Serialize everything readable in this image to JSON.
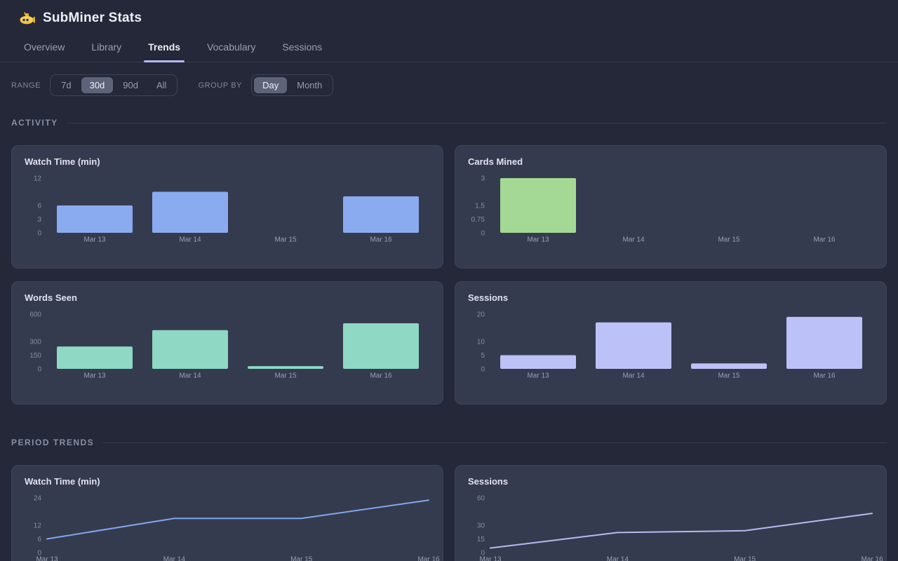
{
  "app": {
    "title": "SubMiner Stats",
    "logo_icon": "yellow-submarine-icon"
  },
  "tabs": [
    {
      "label": "Overview",
      "active": false
    },
    {
      "label": "Library",
      "active": false
    },
    {
      "label": "Trends",
      "active": true
    },
    {
      "label": "Vocabulary",
      "active": false
    },
    {
      "label": "Sessions",
      "active": false
    }
  ],
  "controls": {
    "range": {
      "label": "RANGE",
      "options": [
        {
          "label": "7d",
          "selected": false
        },
        {
          "label": "30d",
          "selected": true
        },
        {
          "label": "90d",
          "selected": false
        },
        {
          "label": "All",
          "selected": false
        }
      ]
    },
    "group_by": {
      "label": "GROUP BY",
      "options": [
        {
          "label": "Day",
          "selected": true
        },
        {
          "label": "Month",
          "selected": false
        }
      ]
    }
  },
  "sections": [
    {
      "title": "ACTIVITY"
    },
    {
      "title": "PERIOD TRENDS"
    }
  ],
  "colors": {
    "page_bg": "#242838",
    "card_bg": "#353b4e",
    "accent_underline": "#b3baf0",
    "watch_bar": "#8babf0",
    "cards_bar": "#a3d995",
    "words_bar": "#8ed8c4",
    "sessions_bar": "#bcc2f7",
    "watch_line": "#7fa6ec",
    "sessions_line": "#b5bbf2"
  },
  "chart_data": [
    {
      "id": "activity-watch-time",
      "type": "bar",
      "title": "Watch Time (min)",
      "categories": [
        "Mar 13",
        "Mar 14",
        "Mar 15",
        "Mar 16"
      ],
      "values": [
        6,
        9,
        0,
        8
      ],
      "ylim": [
        0,
        12
      ],
      "yticks": [
        0,
        3,
        6,
        12
      ],
      "grid": false,
      "legend": "none",
      "color": "#8babf0"
    },
    {
      "id": "activity-cards-mined",
      "type": "bar",
      "title": "Cards Mined",
      "categories": [
        "Mar 13",
        "Mar 14",
        "Mar 15",
        "Mar 16"
      ],
      "values": [
        3,
        0,
        0,
        0
      ],
      "ylim": [
        0,
        3
      ],
      "yticks": [
        0,
        0.75,
        1.5,
        3
      ],
      "grid": false,
      "legend": "none",
      "color": "#a3d995"
    },
    {
      "id": "activity-words-seen",
      "type": "bar",
      "title": "Words Seen",
      "categories": [
        "Mar 13",
        "Mar 14",
        "Mar 15",
        "Mar 16"
      ],
      "values": [
        245,
        425,
        30,
        500
      ],
      "ylim": [
        0,
        600
      ],
      "yticks": [
        0,
        150,
        300,
        600
      ],
      "grid": false,
      "legend": "none",
      "color": "#8ed8c4"
    },
    {
      "id": "activity-sessions",
      "type": "bar",
      "title": "Sessions",
      "categories": [
        "Mar 13",
        "Mar 14",
        "Mar 15",
        "Mar 16"
      ],
      "values": [
        5,
        17,
        2,
        19
      ],
      "ylim": [
        0,
        20
      ],
      "yticks": [
        0,
        5,
        10,
        20
      ],
      "grid": false,
      "legend": "none",
      "color": "#bcc2f7"
    },
    {
      "id": "trend-watch-time",
      "type": "line",
      "title": "Watch Time (min)",
      "categories": [
        "Mar 13",
        "Mar 14",
        "Mar 15",
        "Mar 16"
      ],
      "values": [
        6,
        15,
        15,
        23
      ],
      "ylim": [
        0,
        24
      ],
      "yticks": [
        0,
        6,
        12,
        24
      ],
      "grid": false,
      "legend": "none",
      "color": "#7fa6ec"
    },
    {
      "id": "trend-sessions",
      "type": "line",
      "title": "Sessions",
      "categories": [
        "Mar 13",
        "Mar 14",
        "Mar 15",
        "Mar 16"
      ],
      "values": [
        5,
        22,
        24,
        43
      ],
      "ylim": [
        0,
        60
      ],
      "yticks": [
        0,
        15,
        30,
        60
      ],
      "grid": false,
      "legend": "none",
      "color": "#b5bbf2"
    }
  ]
}
